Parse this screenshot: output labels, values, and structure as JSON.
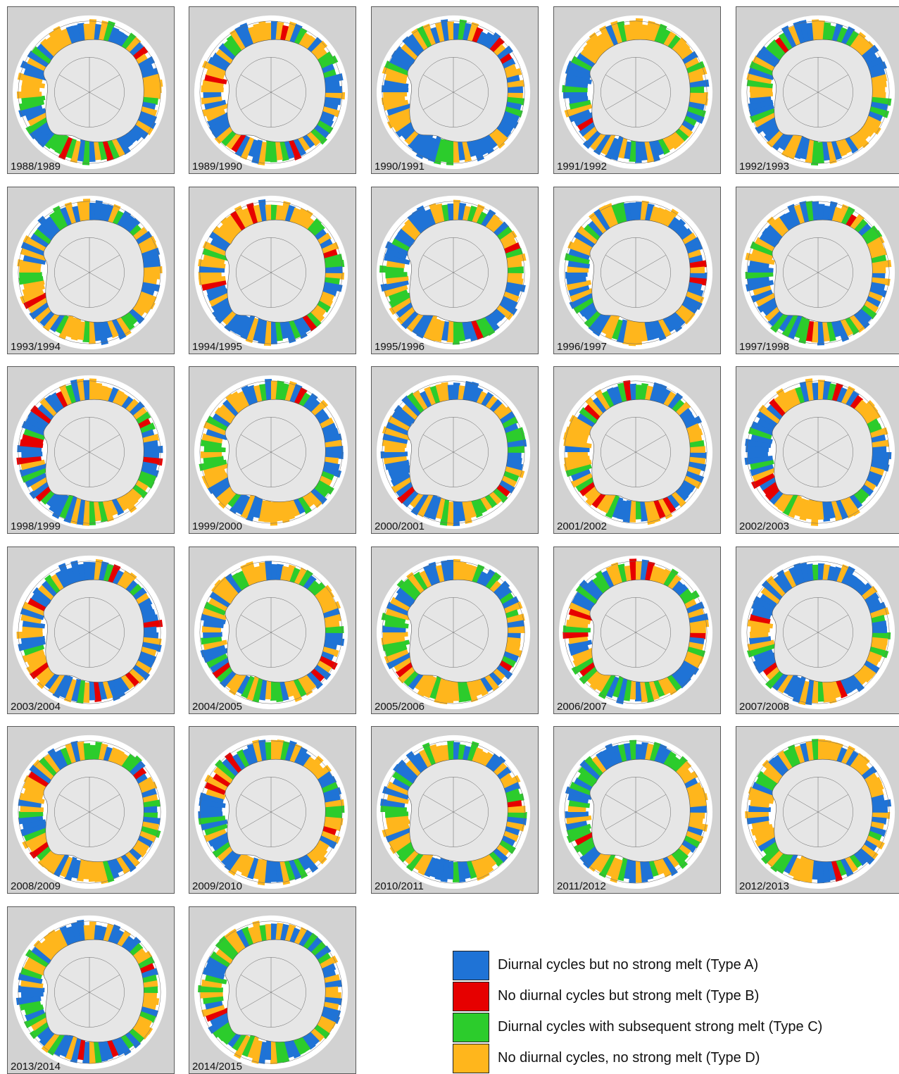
{
  "colors": {
    "type_a": "#1f73d6",
    "type_b": "#e60000",
    "type_c": "#2ccc2c",
    "type_d": "#ffb61c",
    "ice_sheet": "#e6e6e6",
    "background": "#d2d2d2",
    "outer_ice": "#ffffff"
  },
  "panels": [
    {
      "label": "1988/1989"
    },
    {
      "label": "1989/1990"
    },
    {
      "label": "1990/1991"
    },
    {
      "label": "1991/1992"
    },
    {
      "label": "1992/1993"
    },
    {
      "label": "1993/1994"
    },
    {
      "label": "1994/1995"
    },
    {
      "label": "1995/1996"
    },
    {
      "label": "1996/1997"
    },
    {
      "label": "1997/1998"
    },
    {
      "label": "1998/1999"
    },
    {
      "label": "1999/2000"
    },
    {
      "label": "2000/2001"
    },
    {
      "label": "2001/2002"
    },
    {
      "label": "2002/2003"
    },
    {
      "label": "2003/2004"
    },
    {
      "label": "2004/2005"
    },
    {
      "label": "2005/2006"
    },
    {
      "label": "2006/2007"
    },
    {
      "label": "2007/2008"
    },
    {
      "label": "2008/2009"
    },
    {
      "label": "2009/2010"
    },
    {
      "label": "2010/2011"
    },
    {
      "label": "2011/2012"
    },
    {
      "label": "2012/2013"
    },
    {
      "label": "2013/2014"
    },
    {
      "label": "2014/2015"
    }
  ],
  "legend": [
    {
      "label": "Diurnal cycles but no strong melt (Type A)",
      "color": "#1f73d6",
      "icon": "blue-swatch"
    },
    {
      "label": "No diurnal cycles but strong melt (Type B)",
      "color": "#e60000",
      "icon": "red-swatch"
    },
    {
      "label": "Diurnal cycles with subsequent strong melt (Type C)",
      "color": "#2ccc2c",
      "icon": "green-swatch"
    },
    {
      "label": "No diurnal cycles, no strong melt (Type D)",
      "color": "#ffb61c",
      "icon": "orange-swatch"
    }
  ]
}
